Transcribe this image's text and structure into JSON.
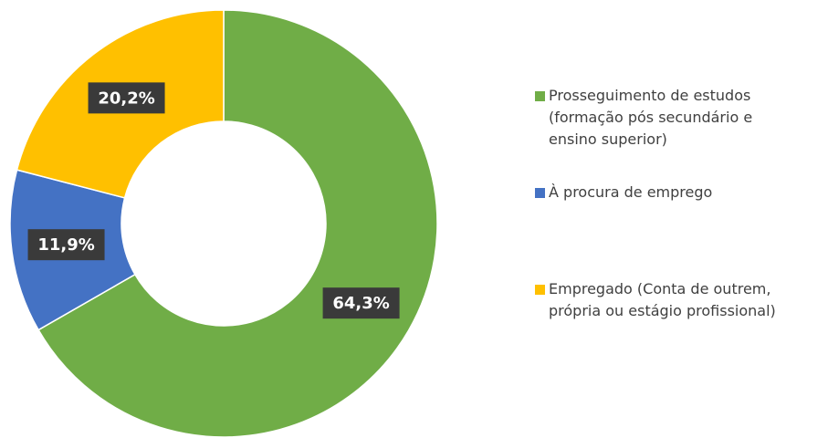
{
  "chart_data": {
    "type": "donut",
    "categories": [
      "Prosseguimento de estudos (formação pós secundário e ensino superior)",
      "À procura de emprego",
      "Empregado (Conta de outrem, própria ou estágio profissional)"
    ],
    "values": [
      64.3,
      11.9,
      20.2
    ],
    "value_labels": [
      "64,3%",
      "11,9%",
      "20,2%"
    ],
    "colors": [
      "#70ad47",
      "#4472c4",
      "#ffc000"
    ],
    "legend": "right"
  }
}
